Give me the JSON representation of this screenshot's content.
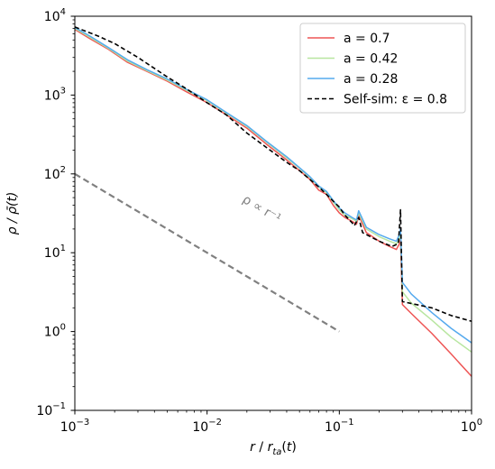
{
  "chart_data": {
    "type": "line",
    "xscale": "log",
    "yscale": "log",
    "xlim": [
      0.001,
      1
    ],
    "ylim": [
      0.1,
      10000
    ],
    "grid": false,
    "xlabel": "r / r_ta(t)",
    "ylabel": "ρ / ρ̄(t)",
    "legend_position": "top-right",
    "x_ticks": [
      {
        "value": 0.001,
        "base": "10",
        "exp": "−3"
      },
      {
        "value": 0.01,
        "base": "10",
        "exp": "−2"
      },
      {
        "value": 0.1,
        "base": "10",
        "exp": "−1"
      },
      {
        "value": 1,
        "base": "10",
        "exp": "0"
      }
    ],
    "y_ticks": [
      {
        "value": 0.1,
        "base": "10",
        "exp": "−1"
      },
      {
        "value": 1,
        "base": "10",
        "exp": "0"
      },
      {
        "value": 10,
        "base": "10",
        "exp": "1"
      },
      {
        "value": 100,
        "base": "10",
        "exp": "2"
      },
      {
        "value": 1000,
        "base": "10",
        "exp": "3"
      },
      {
        "value": 10000,
        "base": "10",
        "exp": "4"
      }
    ],
    "series": [
      {
        "name": "a = 0.7",
        "color": "#ee5555",
        "style": "solid",
        "x": [
          0.001,
          0.0013,
          0.0018,
          0.0025,
          0.0035,
          0.005,
          0.007,
          0.01,
          0.014,
          0.02,
          0.028,
          0.04,
          0.05,
          0.06,
          0.07,
          0.08,
          0.09,
          0.1,
          0.11,
          0.125,
          0.135,
          0.14,
          0.16,
          0.2,
          0.24,
          0.27,
          0.285,
          0.29,
          0.3,
          0.35,
          0.5,
          0.7,
          1.0
        ],
        "y": [
          6800,
          5200,
          3800,
          2600,
          2000,
          1500,
          1100,
          800,
          560,
          380,
          240,
          150,
          110,
          85,
          62,
          55,
          40,
          32,
          28,
          25,
          23,
          30,
          18,
          14,
          12,
          11,
          13,
          15,
          2.2,
          1.7,
          0.95,
          0.52,
          0.27
        ]
      },
      {
        "name": "a = 0.42",
        "color": "#b8e6a0",
        "style": "solid",
        "x": [
          0.001,
          0.0013,
          0.0018,
          0.0025,
          0.0035,
          0.005,
          0.007,
          0.01,
          0.014,
          0.02,
          0.028,
          0.04,
          0.05,
          0.06,
          0.07,
          0.08,
          0.09,
          0.1,
          0.11,
          0.125,
          0.135,
          0.14,
          0.16,
          0.2,
          0.24,
          0.27,
          0.285,
          0.29,
          0.3,
          0.35,
          0.5,
          0.7,
          1.0
        ],
        "y": [
          7000,
          5400,
          3900,
          2700,
          2050,
          1550,
          1150,
          850,
          590,
          400,
          255,
          160,
          118,
          90,
          68,
          58,
          44,
          35,
          30,
          27,
          25,
          32,
          20,
          16,
          14,
          13,
          15,
          18,
          3.2,
          2.3,
          1.4,
          0.85,
          0.55
        ]
      },
      {
        "name": "a = 0.28",
        "color": "#55aaee",
        "style": "solid",
        "x": [
          0.001,
          0.0013,
          0.0018,
          0.0025,
          0.0035,
          0.005,
          0.007,
          0.01,
          0.014,
          0.02,
          0.028,
          0.04,
          0.05,
          0.06,
          0.07,
          0.08,
          0.09,
          0.1,
          0.11,
          0.125,
          0.135,
          0.14,
          0.16,
          0.2,
          0.24,
          0.27,
          0.285,
          0.29,
          0.3,
          0.35,
          0.5,
          0.7,
          1.0
        ],
        "y": [
          7200,
          5600,
          4000,
          2800,
          2100,
          1600,
          1180,
          870,
          600,
          410,
          260,
          165,
          120,
          92,
          70,
          60,
          46,
          37,
          32,
          28,
          26,
          34,
          21,
          17,
          15,
          14,
          17,
          20,
          4.2,
          3.0,
          1.75,
          1.1,
          0.72
        ]
      },
      {
        "name": "Self-sim: ε = 0.8",
        "color": "#000000",
        "style": "dashed",
        "x": [
          0.001,
          0.0015,
          0.002,
          0.003,
          0.005,
          0.007,
          0.01,
          0.014,
          0.02,
          0.03,
          0.04,
          0.05,
          0.06,
          0.07,
          0.08,
          0.09,
          0.1,
          0.11,
          0.125,
          0.13,
          0.14,
          0.15,
          0.2,
          0.25,
          0.28,
          0.29,
          0.3,
          0.5,
          0.7,
          1.0
        ],
        "y": [
          7300,
          5600,
          4500,
          3000,
          1700,
          1200,
          800,
          560,
          330,
          200,
          140,
          110,
          85,
          68,
          55,
          45,
          38,
          30,
          24,
          22,
          28,
          18,
          14,
          12,
          13,
          35,
          2.4,
          2.0,
          1.6,
          1.35
        ]
      }
    ],
    "reference_line": {
      "label": "ρ ∝ r⁻¹",
      "color": "#808080",
      "style": "dashed",
      "x": [
        0.001,
        0.1
      ],
      "y": [
        100,
        1
      ]
    }
  }
}
